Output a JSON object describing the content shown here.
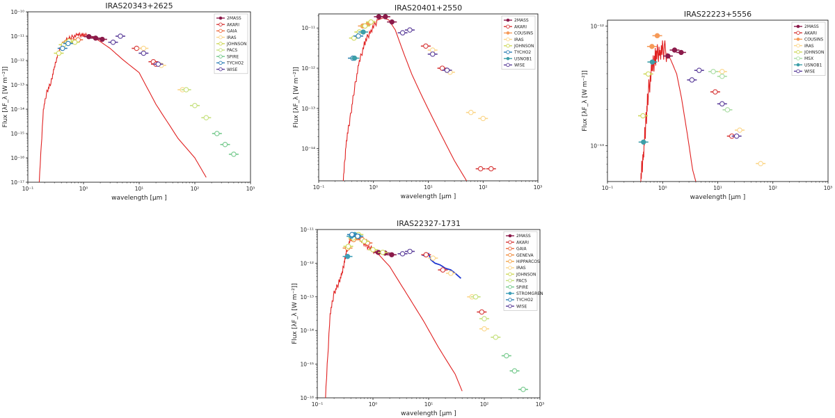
{
  "chart_data": [
    {
      "type": "scatter",
      "title": "IRAS20343+2625",
      "xlabel": "wavelength [μm ]",
      "ylabel": "Flux [λF_λ [W  m⁻²]]",
      "xlim_exp": [
        -1,
        3
      ],
      "ylim_exp": [
        -17,
        -10
      ],
      "x_ticks": [
        "10⁻¹",
        "10⁰",
        "10¹",
        "10²",
        "10³"
      ],
      "y_ticks": [
        "10⁻¹⁷",
        "10⁻¹⁶",
        "10⁻¹⁵",
        "10⁻¹⁴",
        "10⁻¹³",
        "10⁻¹²",
        "10⁻¹¹",
        "10⁻¹⁰"
      ],
      "legend": [
        "2MASS",
        "AKARI",
        "GAIA",
        "IRAS",
        "JOHNSON",
        "PACS",
        "SPIRE",
        "TYCHO2",
        "WISE"
      ],
      "model": [
        [
          0.16,
          -17
        ],
        [
          0.19,
          -14
        ],
        [
          0.22,
          -13.3
        ],
        [
          0.26,
          -12.9
        ],
        [
          0.3,
          -12.3
        ],
        [
          0.35,
          -11.7
        ],
        [
          0.42,
          -11.35
        ],
        [
          0.5,
          -11.15
        ],
        [
          0.6,
          -11.05
        ],
        [
          0.8,
          -10.95
        ],
        [
          1.0,
          -10.95
        ],
        [
          1.3,
          -11.0
        ],
        [
          1.8,
          -11.15
        ],
        [
          3,
          -11.5
        ],
        [
          5,
          -11.95
        ],
        [
          10,
          -12.5
        ],
        [
          20,
          -13.8
        ],
        [
          50,
          -15.2
        ],
        [
          100,
          -16.0
        ],
        [
          160,
          -16.8
        ]
      ],
      "series": [
        {
          "name": "2MASS",
          "points": [
            [
              1.25,
              -11.02
            ],
            [
              1.65,
              -11.08
            ],
            [
              2.17,
              -11.13
            ]
          ]
        },
        {
          "name": "AKARI",
          "points": [
            [
              9,
              -11.5
            ],
            [
              18,
              -12.05
            ],
            [
              20,
              -12.15
            ]
          ]
        },
        {
          "name": "GAIA",
          "points": [
            [
              0.5,
              -11.25
            ],
            [
              0.64,
              -11.2
            ],
            [
              0.8,
              -11.15
            ]
          ]
        },
        {
          "name": "IRAS",
          "points": [
            [
              12,
              -11.5
            ],
            [
              25,
              -12.2
            ],
            [
              60,
              -13.2
            ]
          ]
        },
        {
          "name": "JOHNSON",
          "points": [
            [
              0.36,
              -11.7
            ],
            [
              0.44,
              -11.35
            ],
            [
              0.55,
              -11.2
            ],
            [
              0.7,
              -11.25
            ]
          ]
        },
        {
          "name": "PACS",
          "points": [
            [
              70,
              -13.2
            ],
            [
              100,
              -13.85
            ],
            [
              160,
              -14.35
            ]
          ]
        },
        {
          "name": "SPIRE",
          "points": [
            [
              250,
              -15.0
            ],
            [
              350,
              -15.45
            ],
            [
              500,
              -15.85
            ]
          ]
        },
        {
          "name": "TYCHO2",
          "points": [
            [
              0.42,
              -11.5
            ],
            [
              0.53,
              -11.3
            ]
          ]
        },
        {
          "name": "WISE",
          "points": [
            [
              3.4,
              -11.25
            ],
            [
              4.6,
              -11.0
            ],
            [
              12,
              -11.7
            ],
            [
              22,
              -12.15
            ]
          ]
        }
      ]
    },
    {
      "type": "scatter",
      "title": "IRAS20401+2550",
      "xlabel": "wavelength [μm ]",
      "ylabel": "Flux [λF_λ [W  m⁻²]]",
      "xlim_exp": [
        -1,
        3
      ],
      "ylim_exp": [
        -14.8,
        -10.65
      ],
      "x_ticks": [
        "10⁻¹",
        "10⁰",
        "10¹",
        "10²",
        "10³"
      ],
      "y_ticks": [
        "10⁻¹⁴",
        "10⁻¹³",
        "10⁻¹²",
        "10⁻¹¹"
      ],
      "legend": [
        "2MASS",
        "AKARI",
        "COUSINS",
        "IRAS",
        "JOHNSON",
        "TYCHO2",
        "USNOB1",
        "WISE"
      ],
      "model": [
        [
          0.28,
          -14.8
        ],
        [
          0.32,
          -13.8
        ],
        [
          0.38,
          -13.2
        ],
        [
          0.45,
          -12.5
        ],
        [
          0.55,
          -11.85
        ],
        [
          0.7,
          -11.35
        ],
        [
          0.9,
          -11.05
        ],
        [
          1.2,
          -10.8
        ],
        [
          1.5,
          -10.75
        ],
        [
          1.9,
          -10.8
        ],
        [
          2.5,
          -11.05
        ],
        [
          3.5,
          -11.6
        ],
        [
          5,
          -12.15
        ],
        [
          8,
          -12.75
        ],
        [
          15,
          -13.5
        ],
        [
          30,
          -14.3
        ],
        [
          50,
          -14.8
        ]
      ],
      "series": [
        {
          "name": "2MASS",
          "points": [
            [
              1.25,
              -10.72
            ],
            [
              1.65,
              -10.72
            ],
            [
              2.17,
              -10.85
            ]
          ]
        },
        {
          "name": "AKARI",
          "points": [
            [
              9,
              -11.45
            ],
            [
              18,
              -12.0
            ],
            [
              90,
              -14.5
            ],
            [
              140,
              -14.5
            ]
          ]
        },
        {
          "name": "COUSINS",
          "points": [
            [
              0.64,
              -10.95
            ],
            [
              0.8,
              -10.9
            ]
          ]
        },
        {
          "name": "IRAS",
          "points": [
            [
              12,
              -11.55
            ],
            [
              25,
              -12.1
            ],
            [
              60,
              -13.1
            ],
            [
              100,
              -13.25
            ]
          ]
        },
        {
          "name": "JOHNSON",
          "points": [
            [
              0.44,
              -11.25
            ],
            [
              0.55,
              -11.1
            ],
            [
              0.7,
              -10.95
            ],
            [
              0.9,
              -10.85
            ]
          ]
        },
        {
          "name": "TYCHO2",
          "points": [
            [
              0.42,
              -11.75
            ],
            [
              0.53,
              -11.2
            ]
          ]
        },
        {
          "name": "USNOB1",
          "points": [
            [
              0.45,
              -11.75
            ],
            [
              0.65,
              -11.1
            ]
          ]
        },
        {
          "name": "WISE",
          "points": [
            [
              3.4,
              -11.12
            ],
            [
              4.6,
              -11.05
            ],
            [
              12,
              -11.65
            ],
            [
              22,
              -12.05
            ]
          ]
        }
      ]
    },
    {
      "type": "scatter",
      "title": "IRAS22223+5556",
      "xlabel": "wavelength [μm ]",
      "ylabel": "Flux [λF_λ [W  m⁻²]]",
      "xlim_exp": [
        -1,
        3
      ],
      "ylim_exp": [
        -13.3,
        -11.95
      ],
      "x_ticks": [
        "10⁻¹",
        "10⁰",
        "10¹",
        "10²",
        "10³"
      ],
      "y_ticks": [
        "10⁻¹³",
        "10⁻¹²"
      ],
      "legend": [
        "2MASS",
        "AKARI",
        "COUSINS",
        "IRAS",
        "JOHNSON",
        "MSX",
        "USNOB1",
        "WISE"
      ],
      "model": [
        [
          0.4,
          -13.3
        ],
        [
          0.45,
          -13.05
        ],
        [
          0.5,
          -12.8
        ],
        [
          0.55,
          -12.55
        ],
        [
          0.65,
          -12.35
        ],
        [
          0.75,
          -12.25
        ],
        [
          0.9,
          -12.2
        ],
        [
          1.1,
          -12.2
        ],
        [
          1.4,
          -12.28
        ],
        [
          1.8,
          -12.4
        ],
        [
          2.2,
          -12.6
        ],
        [
          2.8,
          -12.9
        ],
        [
          3.5,
          -13.2
        ],
        [
          4,
          -13.3
        ]
      ],
      "series": [
        {
          "name": "2MASS",
          "points": [
            [
              1.25,
              -12.25
            ],
            [
              1.65,
              -12.2
            ],
            [
              2.17,
              -12.22
            ]
          ]
        },
        {
          "name": "AKARI",
          "points": [
            [
              9,
              -12.55
            ],
            [
              18,
              -12.92
            ]
          ]
        },
        {
          "name": "COUSINS",
          "points": [
            [
              0.64,
              -12.17
            ],
            [
              0.8,
              -12.08
            ]
          ]
        },
        {
          "name": "IRAS",
          "points": [
            [
              12,
              -12.38
            ],
            [
              25,
              -12.87
            ],
            [
              60,
              -13.15
            ]
          ]
        },
        {
          "name": "JOHNSON",
          "points": [
            [
              0.44,
              -12.75
            ],
            [
              0.55,
              -12.4
            ]
          ]
        },
        {
          "name": "MSX",
          "points": [
            [
              8.3,
              -12.38
            ],
            [
              12,
              -12.42
            ],
            [
              15,
              -12.7
            ]
          ]
        },
        {
          "name": "USNOB1",
          "points": [
            [
              0.45,
              -12.97
            ],
            [
              0.65,
              -12.3
            ]
          ]
        },
        {
          "name": "WISE",
          "points": [
            [
              3.4,
              -12.45
            ],
            [
              4.6,
              -12.37
            ],
            [
              12,
              -12.65
            ],
            [
              22,
              -12.92
            ]
          ]
        }
      ]
    },
    {
      "type": "scatter",
      "title": "IRAS22327-1731",
      "xlabel": "wavelength [μm ]",
      "ylabel": "Flux [λF_λ [W  m⁻²]]",
      "xlim_exp": [
        -1,
        3
      ],
      "ylim_exp": [
        -16,
        -11
      ],
      "x_ticks": [
        "10⁻¹",
        "10⁰",
        "10¹",
        "10²",
        "10³"
      ],
      "y_ticks": [
        "10⁻¹⁶",
        "10⁻¹⁵",
        "10⁻¹⁴",
        "10⁻¹³",
        "10⁻¹²",
        "10⁻¹¹"
      ],
      "legend": [
        "2MASS",
        "AKARI",
        "GAIA",
        "GENEVA",
        "HIPPARCOS",
        "IRAS",
        "JOHNSON",
        "PACS",
        "SPIRE",
        "STROMGREN",
        "TYCHO2",
        "WISE"
      ],
      "model": [
        [
          0.14,
          -16
        ],
        [
          0.17,
          -13.5
        ],
        [
          0.2,
          -12.9
        ],
        [
          0.24,
          -12.6
        ],
        [
          0.28,
          -12.3
        ],
        [
          0.32,
          -11.8
        ],
        [
          0.36,
          -11.45
        ],
        [
          0.42,
          -11.2
        ],
        [
          0.5,
          -11.2
        ],
        [
          0.6,
          -11.3
        ],
        [
          0.8,
          -11.5
        ],
        [
          1.2,
          -11.7
        ],
        [
          2,
          -12.1
        ],
        [
          4,
          -12.9
        ],
        [
          8,
          -13.7
        ],
        [
          15,
          -14.5
        ],
        [
          30,
          -15.3
        ],
        [
          40,
          -15.8
        ]
      ],
      "ispec": [
        [
          7.5,
          -11.75
        ],
        [
          9,
          -11.8
        ],
        [
          10,
          -11.72
        ],
        [
          11,
          -11.9
        ],
        [
          13,
          -12.0
        ],
        [
          16,
          -12.05
        ],
        [
          20,
          -12.15
        ],
        [
          25,
          -12.2
        ],
        [
          30,
          -12.3
        ],
        [
          38,
          -12.45
        ]
      ],
      "series": [
        {
          "name": "2MASS",
          "points": [
            [
              1.25,
              -11.68
            ],
            [
              1.65,
              -11.7
            ],
            [
              2.17,
              -11.75
            ]
          ]
        },
        {
          "name": "AKARI",
          "points": [
            [
              9,
              -11.75
            ],
            [
              18,
              -12.2
            ],
            [
              90,
              -13.45
            ]
          ]
        },
        {
          "name": "GAIA",
          "points": [
            [
              0.5,
              -11.2
            ],
            [
              0.64,
              -11.3
            ],
            [
              0.8,
              -11.4
            ]
          ]
        },
        {
          "name": "GENEVA",
          "points": [
            [
              0.35,
              -11.55
            ],
            [
              0.45,
              -11.3
            ]
          ]
        },
        {
          "name": "HIPPARCOS",
          "points": [
            [
              0.5,
              -11.2
            ]
          ]
        },
        {
          "name": "IRAS",
          "points": [
            [
              12,
              -11.85
            ],
            [
              25,
              -12.3
            ],
            [
              60,
              -13.0
            ],
            [
              100,
              -13.95
            ]
          ]
        },
        {
          "name": "JOHNSON",
          "points": [
            [
              0.36,
              -11.5
            ],
            [
              0.44,
              -11.25
            ],
            [
              0.55,
              -11.15
            ],
            [
              0.7,
              -11.35
            ],
            [
              1.0,
              -11.6
            ],
            [
              1.5,
              -11.68
            ]
          ]
        },
        {
          "name": "PACS",
          "points": [
            [
              70,
              -13.0
            ],
            [
              100,
              -13.65
            ],
            [
              160,
              -14.2
            ]
          ]
        },
        {
          "name": "SPIRE",
          "points": [
            [
              250,
              -14.75
            ],
            [
              350,
              -15.2
            ],
            [
              500,
              -15.75
            ]
          ]
        },
        {
          "name": "STROMGREN",
          "points": [
            [
              0.35,
              -11.8
            ],
            [
              0.41,
              -11.2
            ],
            [
              0.47,
              -11.15
            ],
            [
              0.55,
              -11.2
            ]
          ]
        },
        {
          "name": "TYCHO2",
          "points": [
            [
              0.42,
              -11.15
            ],
            [
              0.53,
              -11.2
            ]
          ]
        },
        {
          "name": "WISE",
          "points": [
            [
              3.4,
              -11.72
            ],
            [
              4.6,
              -11.65
            ]
          ]
        }
      ]
    }
  ],
  "styles": {
    "2MASS": {
      "color": "#8b1a4a",
      "marker": "dot"
    },
    "AKARI": {
      "color": "#d73838",
      "marker": "ring"
    },
    "GAIA": {
      "color": "#ec6b3f",
      "marker": "ring"
    },
    "COUSINS": {
      "color": "#f69a58",
      "marker": "dot"
    },
    "GENEVA": {
      "color": "#f08b3c",
      "marker": "ringdot"
    },
    "HIPPARCOS": {
      "color": "#f4a84c",
      "marker": "ringdot"
    },
    "IRAS": {
      "color": "#fbd689",
      "marker": "ring"
    },
    "JOHNSON": {
      "color": "#cfd95c",
      "marker": "ring"
    },
    "MSX": {
      "color": "#a8dca2",
      "marker": "ring"
    },
    "PACS": {
      "color": "#c5e07c",
      "marker": "ring"
    },
    "SPIRE": {
      "color": "#74c98c",
      "marker": "ring"
    },
    "STROMGREN": {
      "color": "#3e9fb8",
      "marker": "dot"
    },
    "TYCHO2": {
      "color": "#2e7fb5",
      "marker": "ring"
    },
    "USNOB1": {
      "color": "#3c9ea8",
      "marker": "dot"
    },
    "WISE": {
      "color": "#5b3e9a",
      "marker": "ring"
    },
    "model_color": "#e02020",
    "ispec_color": "#1f37d0"
  }
}
